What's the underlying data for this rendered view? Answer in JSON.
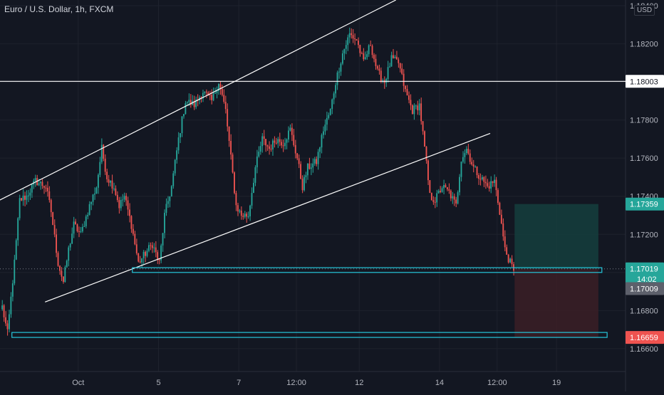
{
  "header": {
    "symbol": "Euro / U.S. Dollar",
    "interval": "1h",
    "exchange": "FXCM",
    "separator": ", "
  },
  "colors": {
    "background": "#131722",
    "up": "#26a69a",
    "down": "#ef5350",
    "grid": "#1e222d",
    "axis_text": "#b2b5be",
    "trendline": "#ffffff",
    "zone": "#26c6da",
    "target_zone": "#153e3d",
    "stop_zone": "#3b1f26"
  },
  "chart_data": {
    "type": "candlestick",
    "title": "Euro / U.S. Dollar, 1h, FXCM",
    "unit": "USD",
    "ylim": [
      1.1648,
      1.1843
    ],
    "y_ticks": [
      "1.18400",
      "1.18200",
      "1.18000",
      "1.17800",
      "1.17600",
      "1.17400",
      "1.17200",
      "1.17000",
      "1.16800",
      "1.16600"
    ],
    "x_ticks": [
      {
        "label": "Oct",
        "bar": 44
      },
      {
        "label": "5",
        "bar": 90
      },
      {
        "label": "7",
        "bar": 136
      },
      {
        "label": "12:00",
        "bar": 169
      },
      {
        "label": "12",
        "bar": 205
      },
      {
        "label": "14",
        "bar": 251
      },
      {
        "label": "12:00",
        "bar": 284
      },
      {
        "label": "19",
        "bar": 318
      }
    ],
    "bar_count": 345,
    "anchors": [
      {
        "bar": 0,
        "price": 1.1682
      },
      {
        "bar": 3,
        "price": 1.1668
      },
      {
        "bar": 7,
        "price": 1.1705
      },
      {
        "bar": 10,
        "price": 1.1738
      },
      {
        "bar": 14,
        "price": 1.174
      },
      {
        "bar": 19,
        "price": 1.1748
      },
      {
        "bar": 25,
        "price": 1.1745
      },
      {
        "bar": 28,
        "price": 1.1732
      },
      {
        "bar": 32,
        "price": 1.1705
      },
      {
        "bar": 35,
        "price": 1.1695
      },
      {
        "bar": 38,
        "price": 1.1712
      },
      {
        "bar": 41,
        "price": 1.1725
      },
      {
        "bar": 45,
        "price": 1.172
      },
      {
        "bar": 50,
        "price": 1.1735
      },
      {
        "bar": 54,
        "price": 1.1745
      },
      {
        "bar": 57,
        "price": 1.1765
      },
      {
        "bar": 60,
        "price": 1.175
      },
      {
        "bar": 64,
        "price": 1.1745
      },
      {
        "bar": 67,
        "price": 1.1735
      },
      {
        "bar": 70,
        "price": 1.174
      },
      {
        "bar": 74,
        "price": 1.1725
      },
      {
        "bar": 78,
        "price": 1.1705
      },
      {
        "bar": 82,
        "price": 1.171
      },
      {
        "bar": 86,
        "price": 1.1715
      },
      {
        "bar": 90,
        "price": 1.1705
      },
      {
        "bar": 93,
        "price": 1.173
      },
      {
        "bar": 97,
        "price": 1.1745
      },
      {
        "bar": 101,
        "price": 1.177
      },
      {
        "bar": 105,
        "price": 1.179
      },
      {
        "bar": 110,
        "price": 1.1788
      },
      {
        "bar": 115,
        "price": 1.1795
      },
      {
        "bar": 120,
        "price": 1.179
      },
      {
        "bar": 124,
        "price": 1.18
      },
      {
        "bar": 128,
        "price": 1.1785
      },
      {
        "bar": 131,
        "price": 1.176
      },
      {
        "bar": 134,
        "price": 1.1735
      },
      {
        "bar": 137,
        "price": 1.173
      },
      {
        "bar": 141,
        "price": 1.173
      },
      {
        "bar": 145,
        "price": 1.1755
      },
      {
        "bar": 149,
        "price": 1.177
      },
      {
        "bar": 153,
        "price": 1.1765
      },
      {
        "bar": 157,
        "price": 1.177
      },
      {
        "bar": 161,
        "price": 1.1768
      },
      {
        "bar": 165,
        "price": 1.1775
      },
      {
        "bar": 169,
        "price": 1.176
      },
      {
        "bar": 172,
        "price": 1.1745
      },
      {
        "bar": 175,
        "price": 1.1755
      },
      {
        "bar": 180,
        "price": 1.1758
      },
      {
        "bar": 184,
        "price": 1.1775
      },
      {
        "bar": 188,
        "price": 1.1785
      },
      {
        "bar": 191,
        "price": 1.18
      },
      {
        "bar": 195,
        "price": 1.1815
      },
      {
        "bar": 199,
        "price": 1.1825
      },
      {
        "bar": 203,
        "price": 1.1822
      },
      {
        "bar": 207,
        "price": 1.181
      },
      {
        "bar": 211,
        "price": 1.182
      },
      {
        "bar": 215,
        "price": 1.1805
      },
      {
        "bar": 219,
        "price": 1.18
      },
      {
        "bar": 223,
        "price": 1.1812
      },
      {
        "bar": 227,
        "price": 1.181
      },
      {
        "bar": 231,
        "price": 1.1795
      },
      {
        "bar": 235,
        "price": 1.1785
      },
      {
        "bar": 239,
        "price": 1.1788
      },
      {
        "bar": 242,
        "price": 1.1765
      },
      {
        "bar": 245,
        "price": 1.174
      },
      {
        "bar": 248,
        "price": 1.1738
      },
      {
        "bar": 252,
        "price": 1.1745
      },
      {
        "bar": 256,
        "price": 1.1742
      },
      {
        "bar": 260,
        "price": 1.1735
      },
      {
        "bar": 263,
        "price": 1.176
      },
      {
        "bar": 266,
        "price": 1.1765
      },
      {
        "bar": 270,
        "price": 1.1755
      },
      {
        "bar": 274,
        "price": 1.175
      },
      {
        "bar": 278,
        "price": 1.1745
      },
      {
        "bar": 282,
        "price": 1.1748
      },
      {
        "bar": 285,
        "price": 1.1732
      },
      {
        "bar": 288,
        "price": 1.1712
      },
      {
        "bar": 291,
        "price": 1.1705
      },
      {
        "bar": 293,
        "price": 1.1701
      }
    ],
    "annotations": {
      "channel_upper": [
        {
          "bar": -2,
          "price": 1.17375
        },
        {
          "bar": 226,
          "price": 1.1843
        }
      ],
      "channel_lower": [
        {
          "bar": 25,
          "price": 1.16845
        },
        {
          "bar": 280,
          "price": 1.1773
        }
      ],
      "horizontal_line": {
        "price": 1.18003
      },
      "support_zone_1": {
        "bar_start": 75,
        "bar_end": 344,
        "price_high": 1.17025,
        "price_low": 1.17
      },
      "support_zone_2": {
        "bar_start": 6,
        "bar_end": 347,
        "price_high": 1.16685,
        "price_low": 1.16659
      },
      "position_box": {
        "bar_start": 294,
        "bar_end": 342,
        "entry": 1.17019,
        "target": 1.17359,
        "stop": 1.16659
      }
    },
    "price_labels": [
      {
        "text": "1.18003",
        "price": 1.18003,
        "kind": "line"
      },
      {
        "text": "1.17359",
        "price": 1.17359,
        "kind": "target"
      },
      {
        "text": "1.17019",
        "price": 1.17019,
        "kind": "entry"
      },
      {
        "text": "14:02",
        "price": 1.16966,
        "kind": "countdown"
      },
      {
        "text": "1.17009",
        "price": 1.16915,
        "kind": "last"
      },
      {
        "text": "1.16659",
        "price": 1.16659,
        "kind": "stop"
      }
    ]
  }
}
